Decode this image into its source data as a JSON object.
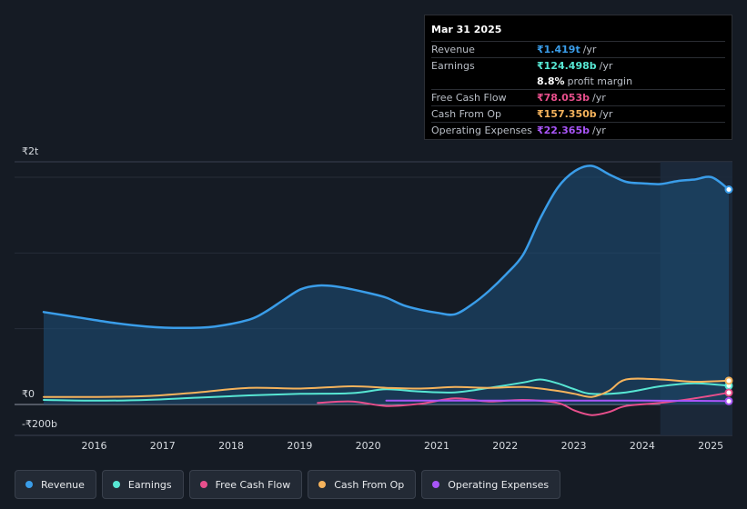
{
  "tooltip": {
    "date": "Mar 31 2025",
    "rows": [
      {
        "label": "Revenue",
        "value": "₹1.419t",
        "unit": "/yr",
        "color": "#3a9de9"
      },
      {
        "label": "Earnings",
        "value": "₹124.498b",
        "unit": "/yr",
        "color": "#57e6d3"
      },
      {
        "label": "",
        "value": "8.8%",
        "unit": "profit margin",
        "color": "#ffffff"
      },
      {
        "label": "Free Cash Flow",
        "value": "₹78.053b",
        "unit": "/yr",
        "color": "#e84f8c"
      },
      {
        "label": "Cash From Op",
        "value": "₹157.350b",
        "unit": "/yr",
        "color": "#f5b35c"
      },
      {
        "label": "Operating Expenses",
        "value": "₹22.365b",
        "unit": "/yr",
        "color": "#a855f7"
      }
    ]
  },
  "legend": [
    {
      "label": "Revenue",
      "color": "#3a9de9"
    },
    {
      "label": "Earnings",
      "color": "#57e6d3"
    },
    {
      "label": "Free Cash Flow",
      "color": "#e84f8c"
    },
    {
      "label": "Cash From Op",
      "color": "#f5b35c"
    },
    {
      "label": "Operating Expenses",
      "color": "#a855f7"
    }
  ],
  "chart_data": {
    "type": "area",
    "title": "",
    "unit": "₹ billions",
    "y_tick_labels": [
      "₹2t",
      "₹0",
      "-₹200b"
    ],
    "y_ticks": [
      2000,
      0,
      -200
    ],
    "ylim": [
      -200,
      2000
    ],
    "xlim": [
      2015.2,
      2025.25
    ],
    "x_ticks": [
      2016,
      2017,
      2018,
      2019,
      2020,
      2021,
      2022,
      2023,
      2024,
      2025
    ],
    "x_tick_labels": [
      "2016",
      "2017",
      "2018",
      "2019",
      "2020",
      "2021",
      "2022",
      "2023",
      "2024",
      "2025"
    ],
    "highlight_start": 2024.25,
    "series": [
      {
        "name": "Revenue",
        "color": "#3a9de9",
        "fill": true,
        "x": [
          2015.25,
          2015.75,
          2016.25,
          2016.75,
          2017.25,
          2017.75,
          2018.25,
          2018.5,
          2018.75,
          2019.0,
          2019.25,
          2019.5,
          2019.75,
          2020.0,
          2020.25,
          2020.5,
          2020.75,
          2021.0,
          2021.25,
          2021.5,
          2021.75,
          2022.0,
          2022.25,
          2022.5,
          2022.75,
          2023.0,
          2023.25,
          2023.5,
          2023.75,
          2024.0,
          2024.25,
          2024.5,
          2024.75,
          2025.0,
          2025.25
        ],
        "y": [
          610,
          575,
          540,
          515,
          505,
          515,
          560,
          615,
          690,
          760,
          785,
          780,
          760,
          735,
          705,
          655,
          625,
          605,
          595,
          660,
          750,
          860,
          990,
          1230,
          1430,
          1540,
          1575,
          1520,
          1470,
          1460,
          1455,
          1475,
          1485,
          1500,
          1419
        ]
      },
      {
        "name": "Earnings",
        "color": "#57e6d3",
        "fill": false,
        "x": [
          2015.25,
          2016.0,
          2016.75,
          2017.5,
          2018.25,
          2019.0,
          2019.75,
          2020.25,
          2020.75,
          2021.25,
          2021.75,
          2022.25,
          2022.5,
          2022.75,
          2023.0,
          2023.25,
          2023.75,
          2024.25,
          2024.75,
          2025.25
        ],
        "y": [
          30,
          25,
          30,
          45,
          60,
          70,
          75,
          100,
          85,
          80,
          110,
          145,
          165,
          140,
          100,
          70,
          80,
          120,
          140,
          124
        ]
      },
      {
        "name": "Free Cash Flow",
        "color": "#e84f8c",
        "fill": false,
        "x": [
          2019.25,
          2019.75,
          2020.25,
          2020.75,
          2021.25,
          2021.75,
          2022.25,
          2022.75,
          2023.0,
          2023.25,
          2023.5,
          2023.75,
          2024.25,
          2024.75,
          2025.25
        ],
        "y": [
          10,
          20,
          -10,
          5,
          40,
          20,
          30,
          10,
          -40,
          -70,
          -50,
          -10,
          10,
          40,
          78
        ]
      },
      {
        "name": "Cash From Op",
        "color": "#f5b35c",
        "fill": false,
        "x": [
          2015.25,
          2016.0,
          2016.75,
          2017.5,
          2018.25,
          2019.0,
          2019.75,
          2020.25,
          2020.75,
          2021.25,
          2021.75,
          2022.25,
          2022.75,
          2023.0,
          2023.25,
          2023.5,
          2023.75,
          2024.25,
          2024.75,
          2025.25
        ],
        "y": [
          50,
          50,
          55,
          80,
          110,
          105,
          120,
          110,
          105,
          115,
          110,
          115,
          90,
          70,
          50,
          90,
          165,
          165,
          150,
          157
        ]
      },
      {
        "name": "Operating Expenses",
        "color": "#a855f7",
        "fill": false,
        "x": [
          2020.25,
          2021.0,
          2021.75,
          2022.5,
          2023.25,
          2024.0,
          2024.75,
          2025.25
        ],
        "y": [
          25,
          25,
          25,
          25,
          25,
          25,
          24,
          22
        ]
      }
    ]
  }
}
